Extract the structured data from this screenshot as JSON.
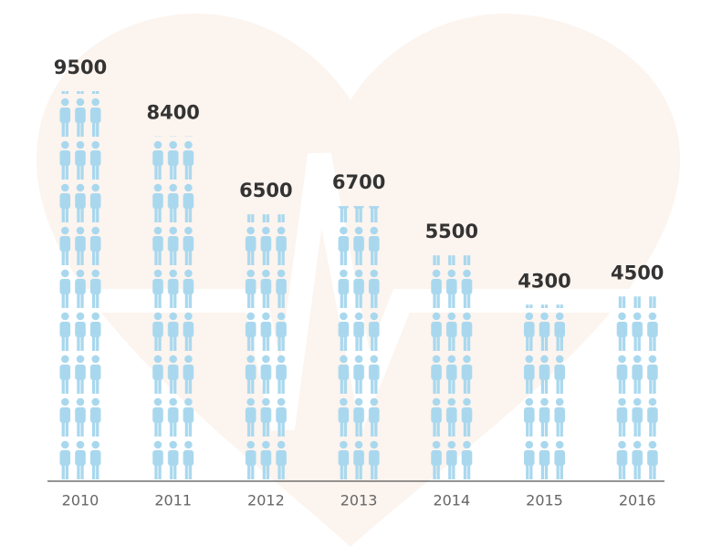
{
  "chart_data": {
    "type": "pictogram",
    "categories": [
      "2010",
      "2011",
      "2012",
      "2013",
      "2014",
      "2015",
      "2016"
    ],
    "values": [
      9500,
      8400,
      6500,
      6700,
      5500,
      4300,
      4500
    ],
    "color": "#a9d8ee"
  }
}
